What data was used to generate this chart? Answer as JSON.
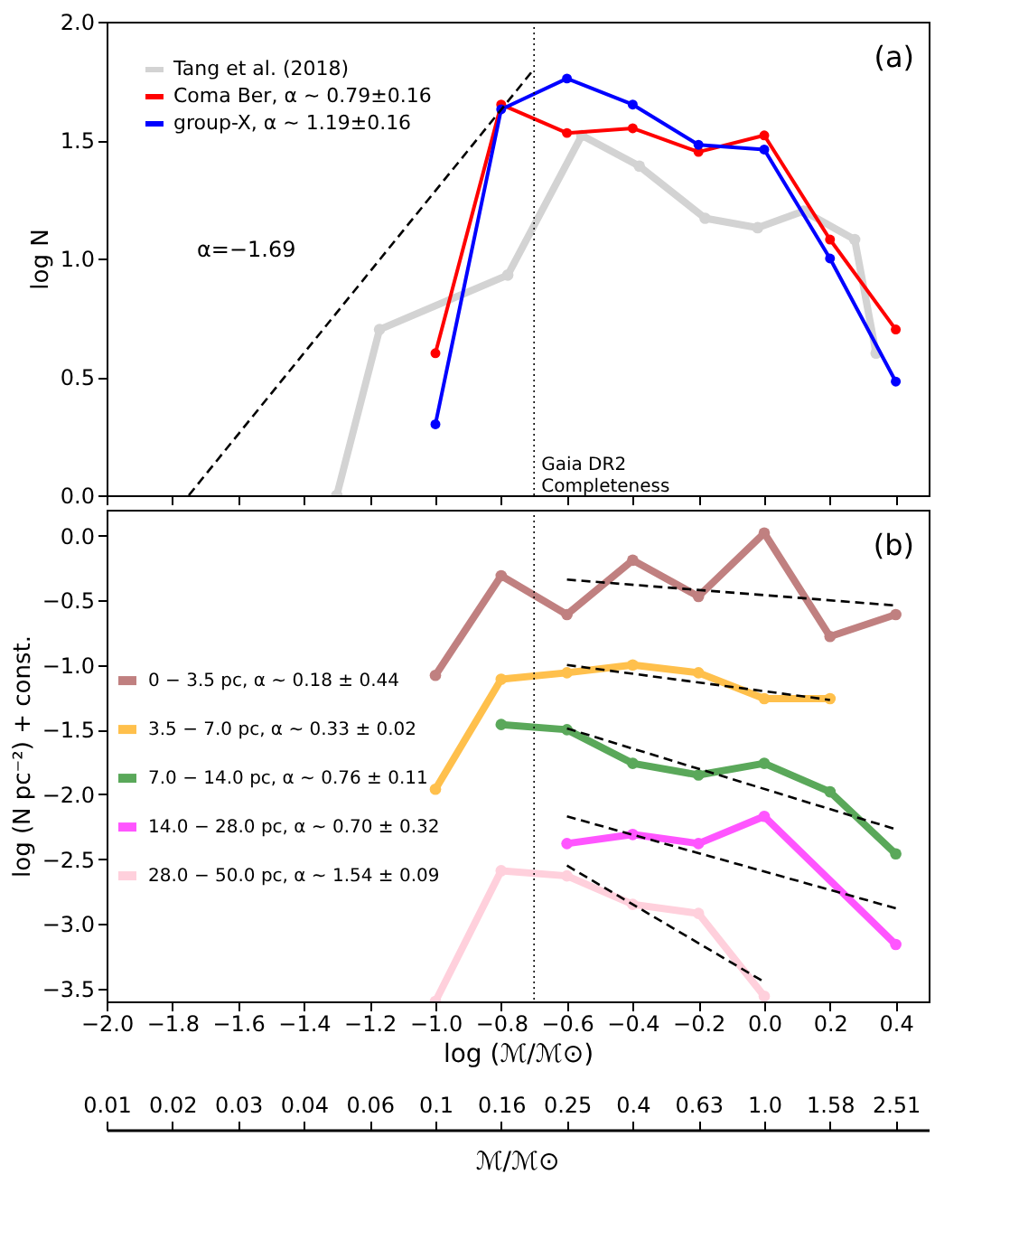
{
  "chart_data": [
    {
      "type": "line",
      "ylabel": "log N",
      "xlim": [
        -2.0,
        0.5
      ],
      "ylim": [
        0,
        2.0
      ],
      "xticks": [
        {
          "value": -2.0,
          "label": null
        },
        {
          "value": -1.8,
          "label": null
        },
        {
          "value": -1.6,
          "label": null
        },
        {
          "value": -1.4,
          "label": null
        },
        {
          "value": -1.2,
          "label": null
        },
        {
          "value": -1.0,
          "label": null
        },
        {
          "value": -0.8,
          "label": null
        },
        {
          "value": -0.6,
          "label": null
        },
        {
          "value": -0.4,
          "label": null
        },
        {
          "value": -0.2,
          "label": null
        },
        {
          "value": 0,
          "label": null
        },
        {
          "value": 0.2,
          "label": null
        },
        {
          "value": 0.4,
          "label": null
        }
      ],
      "yticks": [
        {
          "value": 0,
          "label": "0.0"
        },
        {
          "value": 0.5,
          "label": "0.5"
        },
        {
          "value": 1.0,
          "label": "1.0"
        },
        {
          "value": 1.5,
          "label": "1.5"
        },
        {
          "value": 2.0,
          "label": "2.0"
        }
      ],
      "tick_labels": "y",
      "legend": "top left",
      "grid": false,
      "series": [
        {
          "name": "Tang et al. (2018)",
          "color": "#d3d3d3",
          "marker": "circle",
          "line_style": "solid",
          "x": [
            -1.3,
            -1.17,
            -0.78,
            -0.555,
            -0.38,
            -0.18,
            -0.02,
            0.12,
            0.275,
            0.34
          ],
          "values": [
            0.0,
            0.7,
            0.93,
            1.52,
            1.39,
            1.17,
            1.13,
            1.2,
            1.08,
            0.6
          ]
        },
        {
          "name": "Coma Ber, α ~ 0.79±0.16",
          "color": "#ff0000",
          "marker": "circle",
          "line_style": "solid",
          "x": [
            -1.0,
            -0.8,
            -0.6,
            -0.4,
            -0.2,
            0.0,
            0.2,
            0.4
          ],
          "values": [
            0.6,
            1.65,
            1.53,
            1.55,
            1.45,
            1.52,
            1.08,
            0.7
          ]
        },
        {
          "name": "group-X, α ~ 1.19±0.16",
          "color": "#0000ff",
          "marker": "circle",
          "line_style": "solid",
          "x": [
            -1.0,
            -0.8,
            -0.6,
            -0.4,
            -0.2,
            0.0,
            0.2,
            0.4
          ],
          "values": [
            0.3,
            1.63,
            1.76,
            1.65,
            1.48,
            1.46,
            1.0,
            0.48
          ]
        },
        {
          "color": "#000000",
          "marker": "none",
          "line_style": "dashed",
          "x": [
            -1.75,
            -0.706
          ],
          "values": [
            0.0,
            1.79
          ]
        }
      ],
      "ref_lines": [
        {
          "axis": "x",
          "value": -0.7,
          "label": "Gaia DR2\nCompleteness",
          "color": "#000000",
          "line_style": "dotted"
        }
      ],
      "annotations": [
        "(a)",
        "α=−1.69"
      ]
    },
    {
      "type": "line",
      "xlabel": "log (ℳ/ℳ⊙)",
      "ylabel": "log (N pc⁻²) + const.",
      "xlim": [
        -2.0,
        0.5
      ],
      "ylim": [
        -3.6,
        0.2
      ],
      "xticks": [
        {
          "value": -2.0,
          "label": "−2.0"
        },
        {
          "value": -1.8,
          "label": "−1.8"
        },
        {
          "value": -1.6,
          "label": "−1.6"
        },
        {
          "value": -1.4,
          "label": "−1.4"
        },
        {
          "value": -1.2,
          "label": "−1.2"
        },
        {
          "value": -1.0,
          "label": "−1.0"
        },
        {
          "value": -0.8,
          "label": "−0.8"
        },
        {
          "value": -0.6,
          "label": "−0.6"
        },
        {
          "value": -0.4,
          "label": "−0.4"
        },
        {
          "value": -0.2,
          "label": "−0.2"
        },
        {
          "value": 0,
          "label": "0.0"
        },
        {
          "value": 0.2,
          "label": "0.2"
        },
        {
          "value": 0.4,
          "label": "0.4"
        }
      ],
      "yticks": [
        {
          "value": 0,
          "label": "0.0"
        },
        {
          "value": -0.5,
          "label": "−0.5"
        },
        {
          "value": -1.0,
          "label": "−1.0"
        },
        {
          "value": -1.5,
          "label": "−1.5"
        },
        {
          "value": -2.0,
          "label": "−2.0"
        },
        {
          "value": -2.5,
          "label": "−2.5"
        },
        {
          "value": -3.0,
          "label": "−3.0"
        },
        {
          "value": -3.5,
          "label": "−3.5"
        }
      ],
      "x2label": "ℳ/ℳ⊙",
      "x2lim": [
        0.01,
        3.162
      ],
      "log": "x2",
      "x2ticks": [
        {
          "value": 0.01,
          "label": "0.01"
        },
        {
          "value": 0.01585,
          "label": "0.02"
        },
        {
          "value": 0.02512,
          "label": "0.03"
        },
        {
          "value": 0.03981,
          "label": "0.04"
        },
        {
          "value": 0.0631,
          "label": "0.06"
        },
        {
          "value": 0.1,
          "label": "0.1"
        },
        {
          "value": 0.1585,
          "label": "0.16"
        },
        {
          "value": 0.2512,
          "label": "0.25"
        },
        {
          "value": 0.3981,
          "label": "0.4"
        },
        {
          "value": 0.631,
          "label": "0.63"
        },
        {
          "value": 1.0,
          "label": "1.0"
        },
        {
          "value": 1.585,
          "label": "1.58"
        },
        {
          "value": 2.512,
          "label": "2.51"
        }
      ],
      "legend": "left",
      "grid": false,
      "series": [
        {
          "name": "0 − 3.5 pc, α ~ 0.18 ± 0.44",
          "color": "#c08080",
          "marker": "circle",
          "line_style": "solid",
          "x": [
            -1.0,
            -0.8,
            -0.6,
            -0.4,
            -0.2,
            0.0,
            0.2,
            0.4
          ],
          "values": [
            -1.08,
            -0.31,
            -0.61,
            -0.19,
            -0.47,
            0.02,
            -0.78,
            -0.61
          ]
        },
        {
          "name": "3.5 − 7.0 pc, α ~ 0.33 ± 0.02",
          "color": "#ffc04c",
          "marker": "circle",
          "line_style": "solid",
          "x": [
            -1.0,
            -0.8,
            -0.6,
            -0.4,
            -0.2,
            0.0,
            0.2
          ],
          "values": [
            -1.96,
            -1.11,
            -1.06,
            -1.0,
            -1.06,
            -1.26,
            -1.26
          ]
        },
        {
          "name": "7.0 − 14.0 pc, α ~ 0.76 ± 0.11",
          "color": "#5aa85a",
          "marker": "circle",
          "line_style": "solid",
          "x": [
            -0.8,
            -0.6,
            -0.4,
            -0.2,
            0.0,
            0.2,
            0.4
          ],
          "values": [
            -1.46,
            -1.5,
            -1.76,
            -1.85,
            -1.76,
            -1.98,
            -2.46
          ]
        },
        {
          "name": "14.0 − 28.0 pc, α ~ 0.70 ± 0.32",
          "color": "#ff55ff",
          "marker": "circle",
          "line_style": "solid",
          "x": [
            -0.6,
            -0.4,
            -0.2,
            0.0,
            0.4
          ],
          "values": [
            -2.38,
            -2.31,
            -2.38,
            -2.17,
            -3.16
          ]
        },
        {
          "name": "28.0 − 50.0 pc, α ~ 1.54 ± 0.09",
          "color": "#ffd0dc",
          "marker": "circle",
          "line_style": "solid",
          "x": [
            -1.0,
            -0.8,
            -0.6,
            -0.4,
            -0.2,
            0.0
          ],
          "values": [
            -3.6,
            -2.59,
            -2.63,
            -2.85,
            -2.92,
            -3.56
          ]
        },
        {
          "color": "#000000",
          "marker": "none",
          "line_style": "dashed",
          "x": [
            -0.6,
            0.4
          ],
          "values": [
            -0.34,
            -0.54
          ]
        },
        {
          "color": "#000000",
          "marker": "none",
          "line_style": "dashed",
          "x": [
            -0.6,
            0.2
          ],
          "values": [
            -1.0,
            -1.27
          ]
        },
        {
          "color": "#000000",
          "marker": "none",
          "line_style": "dashed",
          "x": [
            -0.6,
            0.4
          ],
          "values": [
            -1.49,
            -2.27
          ]
        },
        {
          "color": "#000000",
          "marker": "none",
          "line_style": "dashed",
          "x": [
            -0.6,
            0.4
          ],
          "values": [
            -2.17,
            -2.88
          ]
        },
        {
          "color": "#000000",
          "marker": "none",
          "line_style": "dashed",
          "x": [
            -0.6,
            0.0
          ],
          "values": [
            -2.55,
            -3.45
          ]
        }
      ],
      "ref_lines": [
        {
          "axis": "x",
          "value": -0.7,
          "color": "#000000",
          "line_style": "dotted"
        }
      ],
      "annotations": [
        "(b)"
      ]
    }
  ]
}
